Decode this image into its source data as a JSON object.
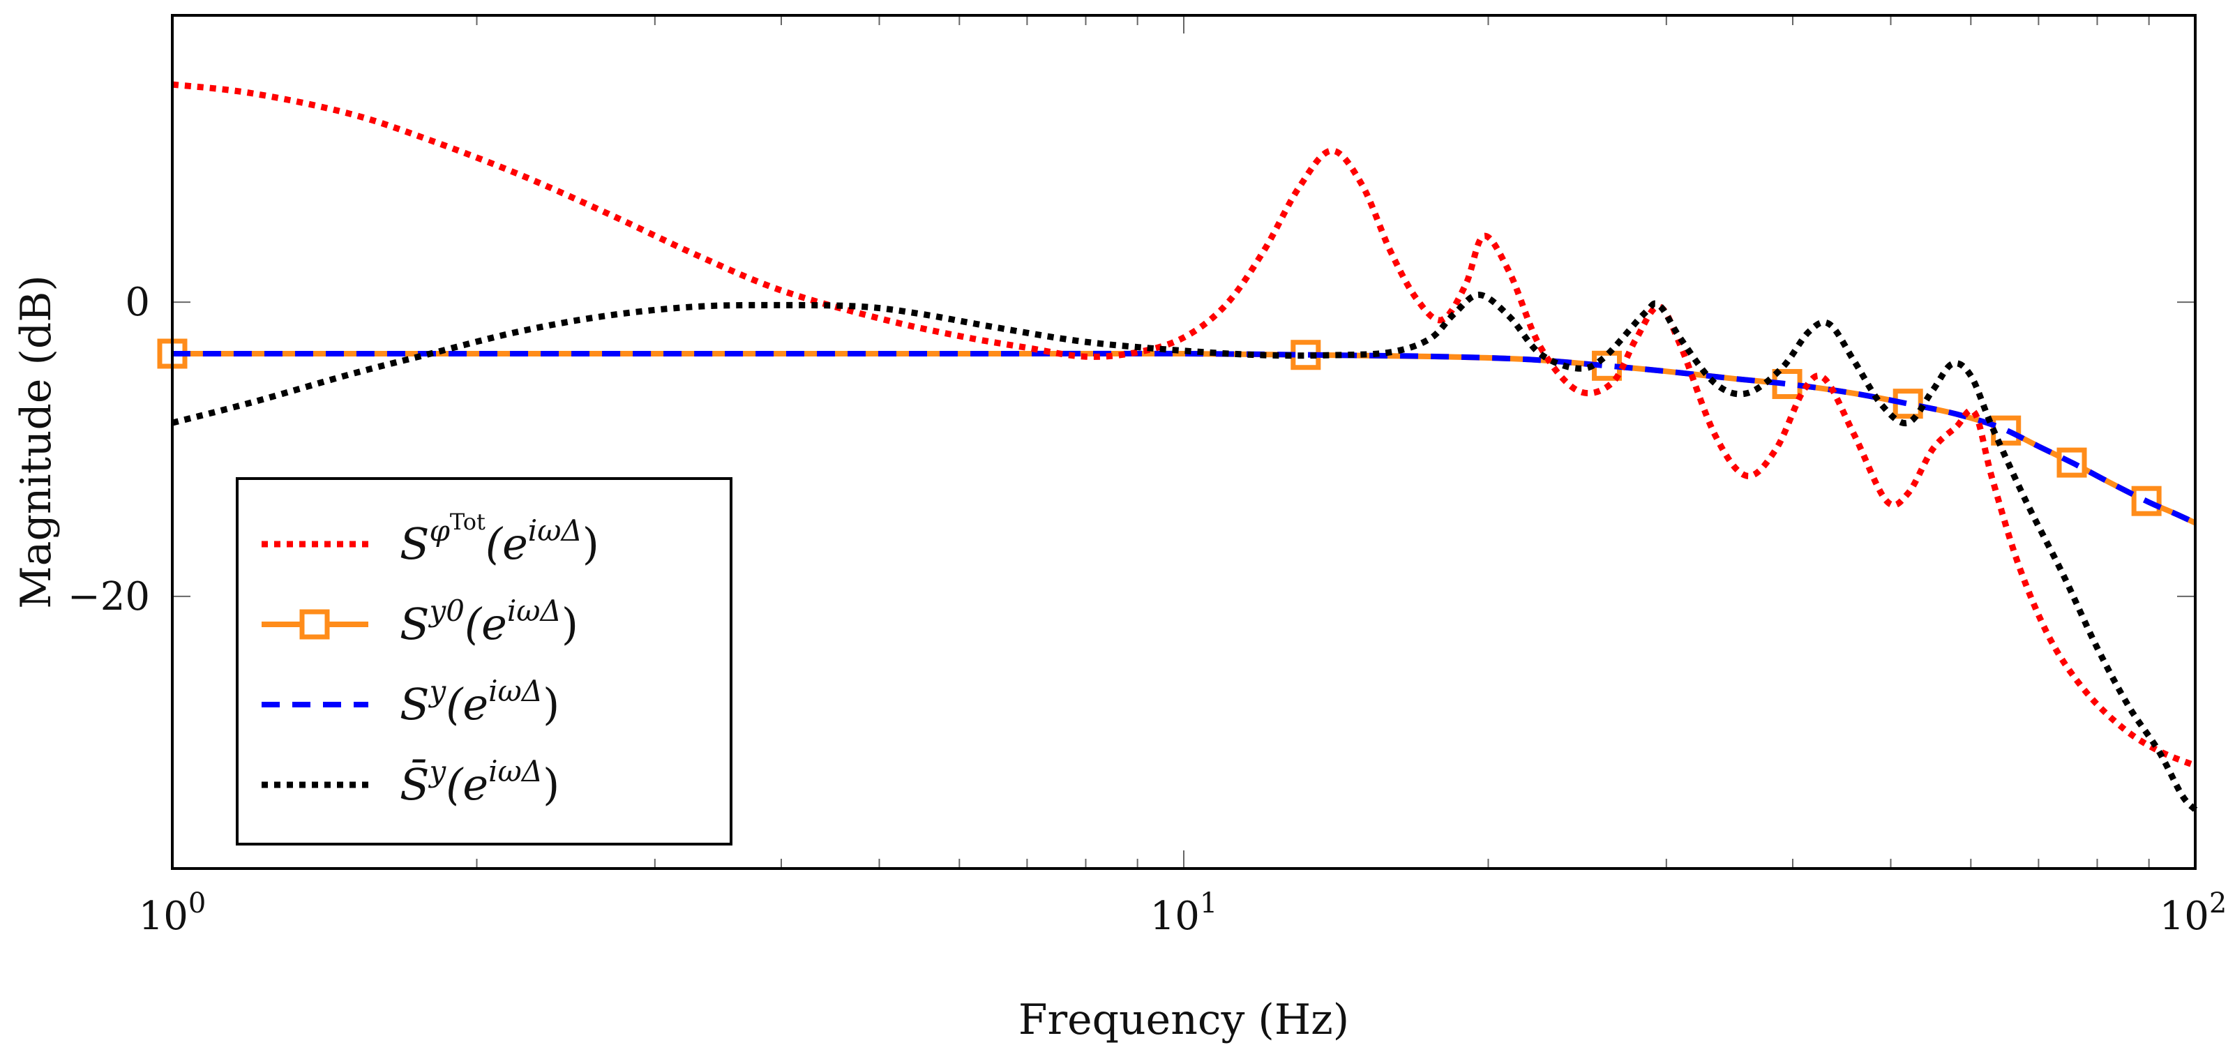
{
  "chart_data": {
    "type": "line",
    "title": "",
    "xlabel": "Frequency (Hz)",
    "ylabel": "Magnitude (dB)",
    "xscale": "log",
    "xlim": [
      1,
      100
    ],
    "ylim": [
      -38.5,
      19.5
    ],
    "x_ticks": [
      {
        "value": 1,
        "base": "10",
        "exp": "0"
      },
      {
        "value": 10,
        "base": "10",
        "exp": "1"
      },
      {
        "value": 100,
        "base": "10",
        "exp": "2"
      }
    ],
    "y_ticks": [
      {
        "value": 0,
        "label": "0"
      },
      {
        "value": -20,
        "label": "−20"
      }
    ],
    "legend_position": "bottom-left",
    "series": [
      {
        "name": "S^{φ^Tot}(e^{iωΔ})",
        "legend": {
          "main": "S",
          "sup": "φ",
          "supsup": "Tot",
          "arg_open": "(e",
          "arg_sup": "iωΔ",
          "arg_close": ")"
        },
        "color": "#ff0000",
        "style": "dotted",
        "points": [
          [
            1,
            14.8
          ],
          [
            1.2,
            14.2
          ],
          [
            1.5,
            12.8
          ],
          [
            1.8,
            11.0
          ],
          [
            2.2,
            8.7
          ],
          [
            2.7,
            6.0
          ],
          [
            3.3,
            3.2
          ],
          [
            4.0,
            0.8
          ],
          [
            5.0,
            -1.1
          ],
          [
            6.0,
            -2.3
          ],
          [
            7.0,
            -3.1
          ],
          [
            8.0,
            -3.7
          ],
          [
            9.0,
            -3.4
          ],
          [
            10.0,
            -2.4
          ],
          [
            11.0,
            -0.2
          ],
          [
            12.0,
            3.5
          ],
          [
            13.0,
            7.8
          ],
          [
            14.0,
            10.3
          ],
          [
            15.0,
            8.0
          ],
          [
            16.0,
            3.5
          ],
          [
            17.0,
            0.2
          ],
          [
            18.0,
            -1.2
          ],
          [
            19.0,
            1.2
          ],
          [
            19.8,
            4.5
          ],
          [
            21.0,
            2.0
          ],
          [
            22.5,
            -3.0
          ],
          [
            24.5,
            -6.0
          ],
          [
            26.5,
            -5.5
          ],
          [
            28.0,
            -2.5
          ],
          [
            29.5,
            -0.3
          ],
          [
            31.0,
            -3.0
          ],
          [
            33.5,
            -9.0
          ],
          [
            36.0,
            -11.8
          ],
          [
            38.5,
            -10.0
          ],
          [
            41.0,
            -6.0
          ],
          [
            43.0,
            -5.2
          ],
          [
            46.0,
            -9.0
          ],
          [
            49.5,
            -13.5
          ],
          [
            52.0,
            -13.0
          ],
          [
            55.0,
            -10.0
          ],
          [
            58.0,
            -8.5
          ],
          [
            60.5,
            -7.5
          ],
          [
            63.0,
            -12.0
          ],
          [
            67.0,
            -18.0
          ],
          [
            72.0,
            -23.0
          ],
          [
            78.0,
            -26.5
          ],
          [
            85.0,
            -29.0
          ],
          [
            92.0,
            -30.5
          ],
          [
            100.0,
            -31.5
          ]
        ]
      },
      {
        "name": "S^{y0}(e^{iωΔ})",
        "legend": {
          "main": "S",
          "sup": "y0",
          "supsup": "",
          "arg_open": "(e",
          "arg_sup": "iωΔ",
          "arg_close": ")"
        },
        "color": "#ff8c1a",
        "style": "solid",
        "markers": true,
        "marker_x": [
          1,
          13.2,
          26.2,
          39.5,
          52.0,
          65.0,
          75.5,
          89.5
        ],
        "points": [
          [
            1,
            -3.5
          ],
          [
            3,
            -3.5
          ],
          [
            6,
            -3.5
          ],
          [
            10,
            -3.5
          ],
          [
            14,
            -3.6
          ],
          [
            18,
            -3.7
          ],
          [
            22,
            -3.9
          ],
          [
            26,
            -4.3
          ],
          [
            30,
            -4.7
          ],
          [
            35,
            -5.2
          ],
          [
            40,
            -5.6
          ],
          [
            46,
            -6.2
          ],
          [
            52,
            -6.9
          ],
          [
            58,
            -7.6
          ],
          [
            64,
            -8.5
          ],
          [
            70,
            -9.8
          ],
          [
            76,
            -11.0
          ],
          [
            82,
            -12.2
          ],
          [
            90,
            -13.6
          ],
          [
            95,
            -14.3
          ],
          [
            100,
            -15.0
          ]
        ]
      },
      {
        "name": "S^{y}(e^{iωΔ})",
        "legend": {
          "main": "S",
          "sup": "y",
          "supsup": "",
          "arg_open": "(e",
          "arg_sup": "iωΔ",
          "arg_close": ")"
        },
        "color": "#0000ff",
        "style": "dashed",
        "points": [
          [
            1,
            -3.5
          ],
          [
            3,
            -3.5
          ],
          [
            6,
            -3.5
          ],
          [
            10,
            -3.5
          ],
          [
            14,
            -3.6
          ],
          [
            18,
            -3.7
          ],
          [
            22,
            -3.9
          ],
          [
            26,
            -4.3
          ],
          [
            30,
            -4.7
          ],
          [
            35,
            -5.2
          ],
          [
            40,
            -5.6
          ],
          [
            46,
            -6.2
          ],
          [
            52,
            -6.9
          ],
          [
            58,
            -7.6
          ],
          [
            64,
            -8.5
          ],
          [
            70,
            -9.8
          ],
          [
            76,
            -11.0
          ],
          [
            82,
            -12.2
          ],
          [
            90,
            -13.6
          ],
          [
            95,
            -14.3
          ],
          [
            100,
            -15.0
          ]
        ]
      },
      {
        "name": "S̄^{y}(e^{iωΔ})",
        "legend": {
          "main": "S̄",
          "sup": "y",
          "supsup": "",
          "arg_open": "(e",
          "arg_sup": "iωΔ",
          "arg_close": ")"
        },
        "color": "#000000",
        "style": "dotted",
        "points": [
          [
            1,
            -8.2
          ],
          [
            1.2,
            -6.8
          ],
          [
            1.5,
            -4.9
          ],
          [
            1.8,
            -3.5
          ],
          [
            2.2,
            -2.0
          ],
          [
            2.7,
            -0.9
          ],
          [
            3.3,
            -0.3
          ],
          [
            4.0,
            -0.2
          ],
          [
            4.8,
            -0.3
          ],
          [
            5.5,
            -0.8
          ],
          [
            6.5,
            -1.7
          ],
          [
            8.0,
            -2.7
          ],
          [
            10.0,
            -3.3
          ],
          [
            12.0,
            -3.6
          ],
          [
            14.0,
            -3.6
          ],
          [
            16.0,
            -3.4
          ],
          [
            17.5,
            -2.5
          ],
          [
            18.5,
            -0.8
          ],
          [
            19.6,
            0.5
          ],
          [
            21.0,
            -1.0
          ],
          [
            22.5,
            -3.5
          ],
          [
            24.5,
            -4.5
          ],
          [
            26.0,
            -3.8
          ],
          [
            28.5,
            -0.8
          ],
          [
            29.5,
            -0.2
          ],
          [
            31.0,
            -2.5
          ],
          [
            33.5,
            -5.5
          ],
          [
            36.0,
            -6.2
          ],
          [
            39.0,
            -4.5
          ],
          [
            41.5,
            -2.0
          ],
          [
            43.5,
            -1.5
          ],
          [
            46.0,
            -4.0
          ],
          [
            49.0,
            -7.0
          ],
          [
            52.0,
            -8.2
          ],
          [
            55.0,
            -6.0
          ],
          [
            57.5,
            -4.2
          ],
          [
            60.0,
            -5.0
          ],
          [
            63.0,
            -8.5
          ],
          [
            68.0,
            -13.5
          ],
          [
            74.0,
            -18.5
          ],
          [
            80.0,
            -23.5
          ],
          [
            86.0,
            -27.5
          ],
          [
            92.0,
            -30.5
          ],
          [
            97.0,
            -33.5
          ],
          [
            100.0,
            -34.5
          ]
        ]
      }
    ]
  }
}
